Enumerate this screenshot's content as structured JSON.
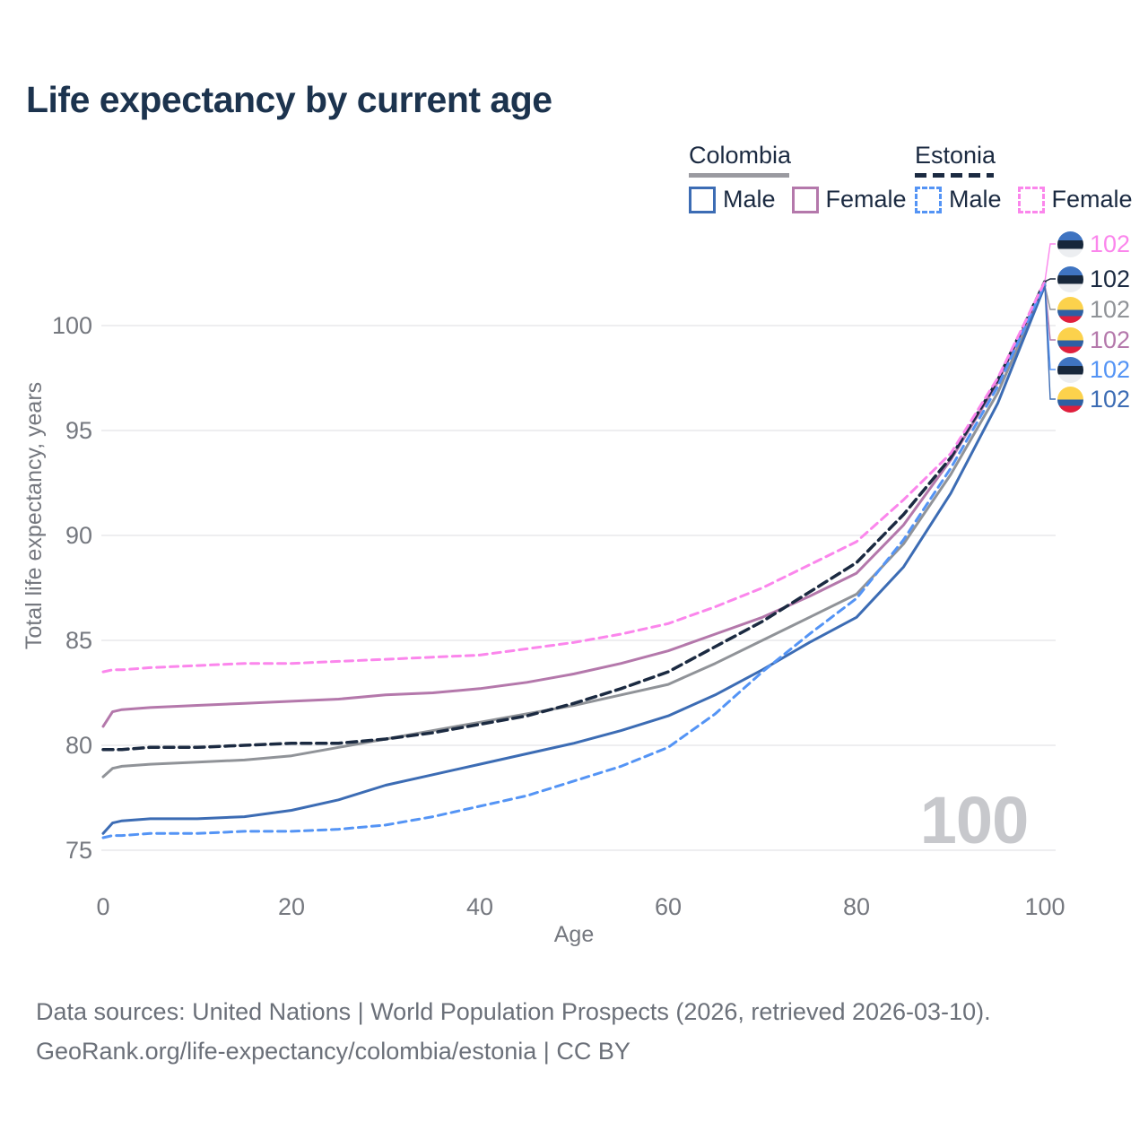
{
  "title": "Life expectancy by current age",
  "watermark": "100",
  "legend": {
    "groups": [
      {
        "id": "colombia",
        "label": "Colombia",
        "underline_style": "solid",
        "items": [
          {
            "id": "colombia_male",
            "label": "Male",
            "swatch": "solid"
          },
          {
            "id": "colombia_female",
            "label": "Female",
            "swatch": "solid"
          }
        ]
      },
      {
        "id": "estonia",
        "label": "Estonia",
        "underline_style": "dashed",
        "items": [
          {
            "id": "estonia_male",
            "label": "Male",
            "swatch": "dashed"
          },
          {
            "id": "estonia_female",
            "label": "Female",
            "swatch": "dashed"
          }
        ]
      }
    ]
  },
  "colors": {
    "title": "#1c334e",
    "legend_text": "#1b2a41",
    "axis_text": "#75787f",
    "grid": "#e8e9ec",
    "watermark": "#c7c8cc",
    "footer_text": "#6b7079",
    "colombia_underline": "#9a9aa0",
    "estonia_underline": "#1b2a41",
    "colombia_male": "#3c6cb4",
    "colombia_female": "#b478ab",
    "colombia_all": "#909398",
    "estonia_male": "#5494f5",
    "estonia_female": "#fb86ec",
    "estonia_all": "#1b2a41"
  },
  "end_labels": [
    {
      "series": "estonia_female",
      "flag": "estonia",
      "value": "102"
    },
    {
      "series": "estonia_all",
      "flag": "estonia",
      "value": "102"
    },
    {
      "series": "colombia_all",
      "flag": "colombia",
      "value": "102"
    },
    {
      "series": "colombia_female",
      "flag": "colombia",
      "value": "102"
    },
    {
      "series": "estonia_male",
      "flag": "estonia",
      "value": "102"
    },
    {
      "series": "colombia_male",
      "flag": "colombia",
      "value": "102"
    }
  ],
  "footer": {
    "line1": "Data sources: United Nations | World Population Prospects (2026, retrieved 2026-03-10).",
    "line2": "GeoRank.org/life-expectancy/colombia/estonia | CC BY"
  },
  "chart_data": {
    "type": "line",
    "title": "Life expectancy by current age",
    "xlabel": "Age",
    "ylabel": "Total life expectancy, years",
    "xlim": [
      0,
      100
    ],
    "ylim": [
      74,
      103
    ],
    "x_ticks": [
      0,
      20,
      40,
      60,
      80,
      100
    ],
    "y_ticks": [
      75,
      80,
      85,
      90,
      95,
      100
    ],
    "grid": true,
    "legend_position": "top-right",
    "x": [
      0,
      1,
      2,
      5,
      10,
      15,
      20,
      25,
      30,
      35,
      40,
      45,
      50,
      55,
      60,
      65,
      70,
      75,
      80,
      85,
      90,
      95,
      100
    ],
    "series": [
      {
        "name": "Colombia — All",
        "id": "colombia_all",
        "style": "solid",
        "end_label": "102",
        "values": [
          78.5,
          78.9,
          79.0,
          79.1,
          79.2,
          79.3,
          79.5,
          79.9,
          80.3,
          80.7,
          81.1,
          81.5,
          81.9,
          82.4,
          82.9,
          83.9,
          85.0,
          86.1,
          87.2,
          89.6,
          92.9,
          96.8,
          101.9
        ]
      },
      {
        "name": "Colombia — Female",
        "id": "colombia_female",
        "style": "solid",
        "end_label": "102",
        "values": [
          80.9,
          81.6,
          81.7,
          81.8,
          81.9,
          82.0,
          82.1,
          82.2,
          82.4,
          82.5,
          82.7,
          83.0,
          83.4,
          83.9,
          84.5,
          85.3,
          86.1,
          87.1,
          88.2,
          90.5,
          93.6,
          97.3,
          102.0
        ]
      },
      {
        "name": "Colombia — Male",
        "id": "colombia_male",
        "style": "solid",
        "end_label": "102",
        "values": [
          75.8,
          76.3,
          76.4,
          76.5,
          76.5,
          76.6,
          76.9,
          77.4,
          78.1,
          78.6,
          79.1,
          79.6,
          80.1,
          80.7,
          81.4,
          82.4,
          83.6,
          84.9,
          86.1,
          88.5,
          92.0,
          96.3,
          101.9
        ]
      },
      {
        "name": "Estonia — All",
        "id": "estonia_all",
        "style": "dashed",
        "end_label": "102",
        "values": [
          79.8,
          79.8,
          79.8,
          79.9,
          79.9,
          80.0,
          80.1,
          80.1,
          80.3,
          80.6,
          81.0,
          81.4,
          82.0,
          82.7,
          83.5,
          84.7,
          85.9,
          87.3,
          88.7,
          91.0,
          93.7,
          97.4,
          102.1
        ]
      },
      {
        "name": "Estonia — Male",
        "id": "estonia_male",
        "style": "dashed",
        "end_label": "102",
        "values": [
          75.6,
          75.7,
          75.7,
          75.8,
          75.8,
          75.9,
          75.9,
          76.0,
          76.2,
          76.6,
          77.1,
          77.6,
          78.3,
          79.0,
          79.9,
          81.5,
          83.5,
          85.3,
          87.0,
          89.8,
          93.2,
          97.1,
          102.0
        ]
      },
      {
        "name": "Estonia — Female",
        "id": "estonia_female",
        "style": "dashed",
        "end_label": "102",
        "values": [
          83.5,
          83.6,
          83.6,
          83.7,
          83.8,
          83.9,
          83.9,
          84.0,
          84.1,
          84.2,
          84.3,
          84.6,
          84.9,
          85.3,
          85.8,
          86.6,
          87.5,
          88.6,
          89.7,
          91.7,
          93.9,
          97.5,
          102.1
        ]
      }
    ]
  }
}
